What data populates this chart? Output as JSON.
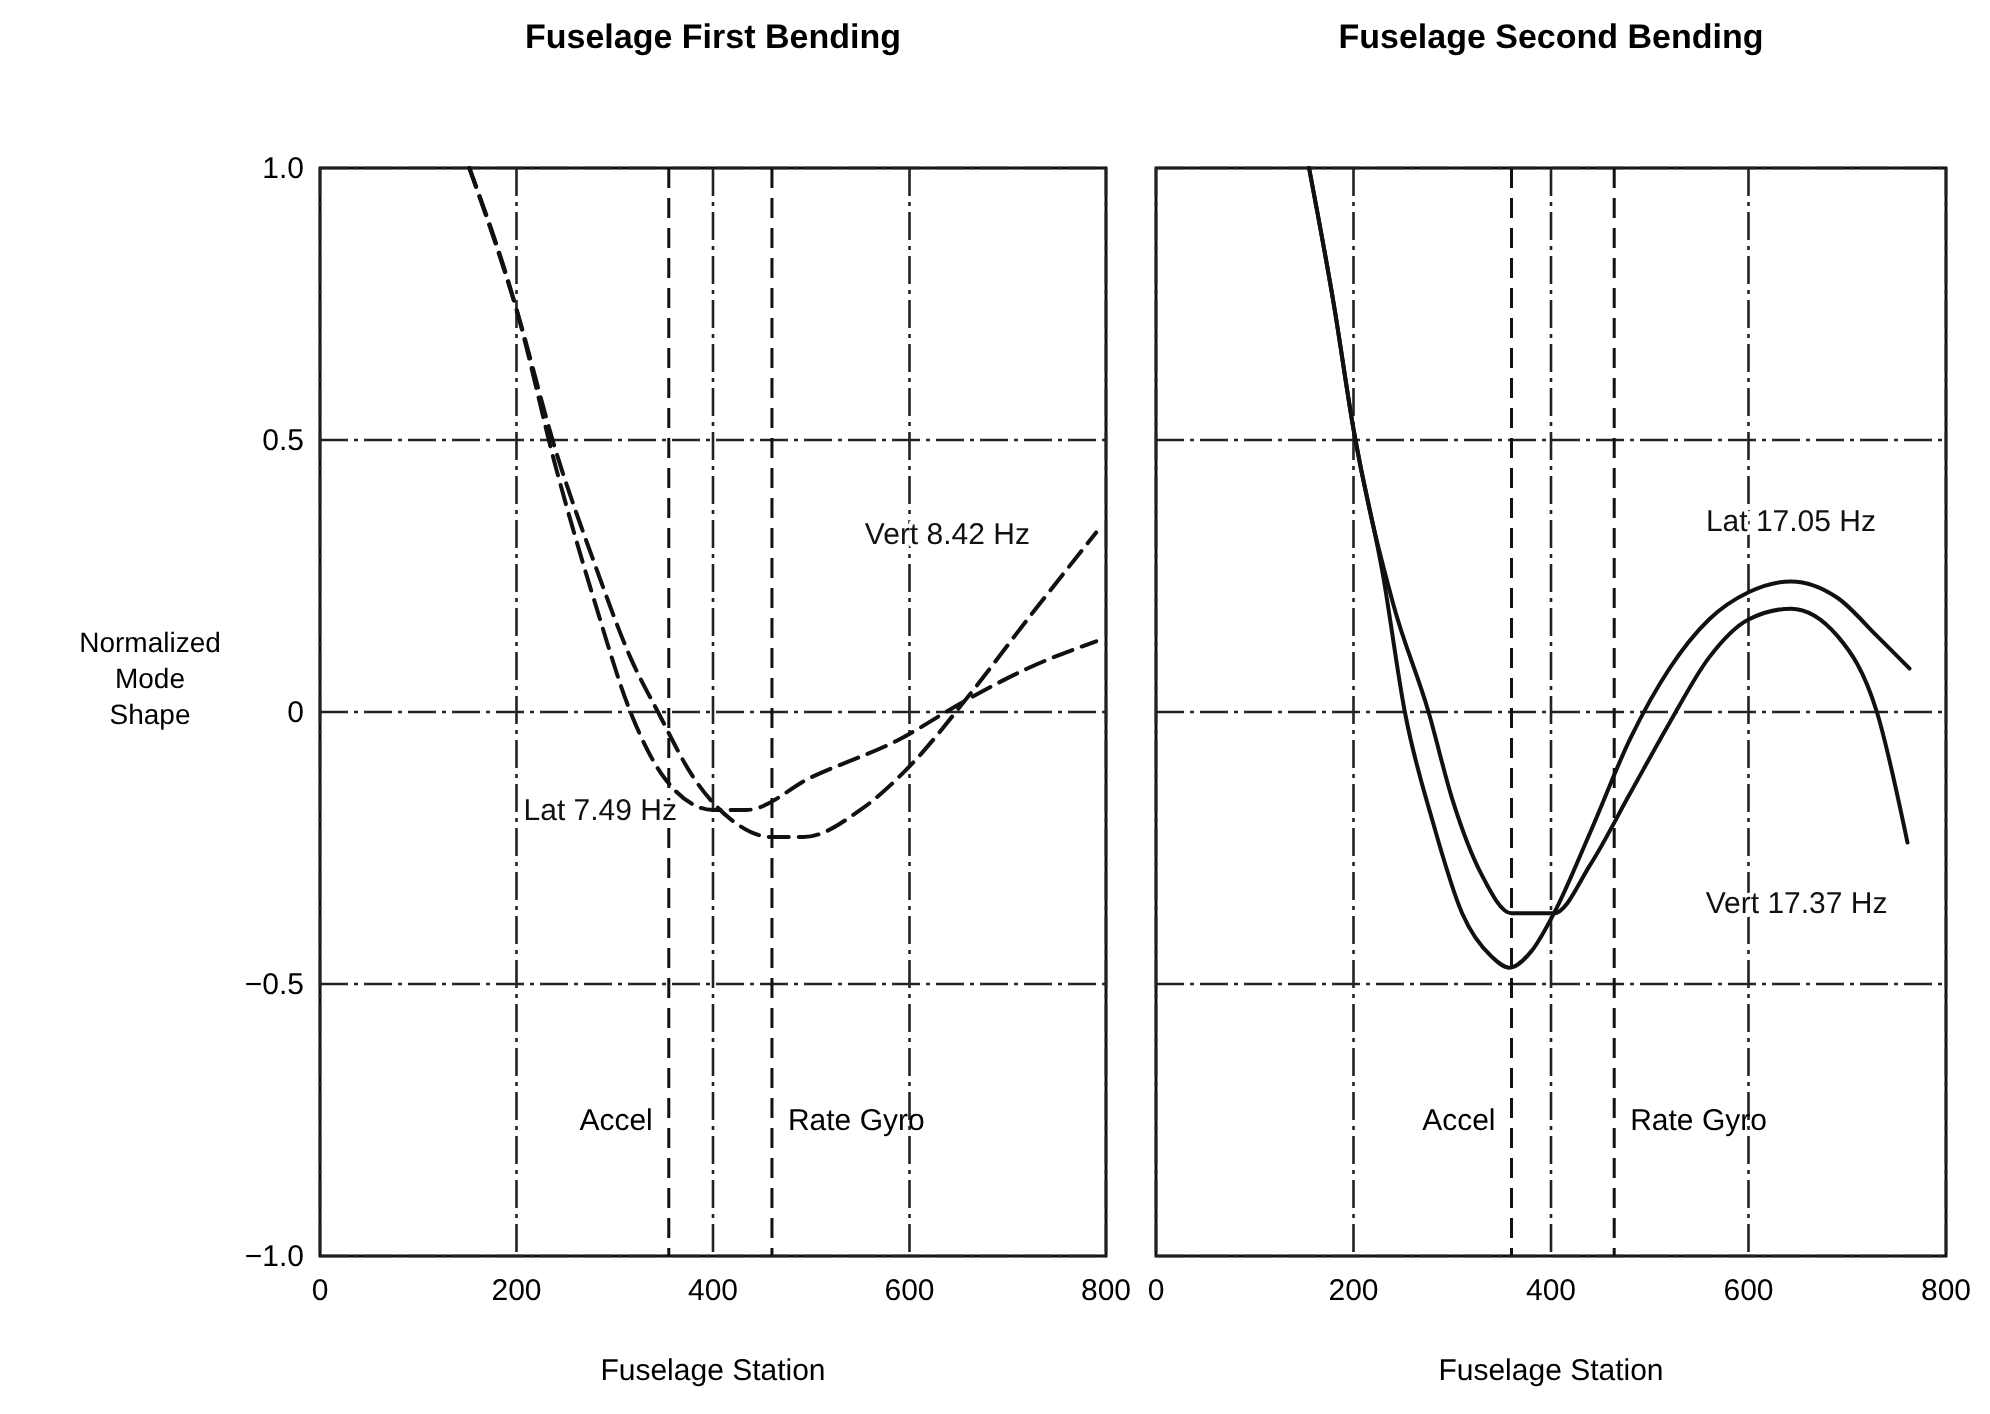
{
  "chart_data": [
    {
      "type": "line",
      "title": "Fuselage First Bending",
      "xlabel": "Fuselage Station",
      "ylabel": "Normalized Mode Shape",
      "xlim": [
        0,
        800
      ],
      "xticks": [
        0,
        200,
        400,
        600,
        800
      ],
      "ylim": [
        -1.0,
        1.0
      ],
      "yticks": [
        {
          "value": -1.0,
          "label": "−1.0"
        },
        {
          "value": -0.5,
          "label": "−0.5"
        },
        0,
        {
          "value": 0.5,
          "label": "0.5"
        },
        {
          "value": 1.0,
          "label": "1.0"
        }
      ],
      "grid": true,
      "series": [
        {
          "name": "Lat 7.49 Hz",
          "color": "#111111",
          "line_style": "dashed",
          "x": [
            152,
            200,
            240,
            280,
            316,
            350,
            400,
            434,
            500,
            590,
            656,
            720,
            790
          ],
          "values": [
            1.0,
            0.74,
            0.45,
            0.2,
            0.0,
            -0.12,
            -0.18,
            -0.18,
            -0.12,
            -0.05,
            0.02,
            0.08,
            0.13
          ]
        },
        {
          "name": "Vert 8.42 Hz",
          "color": "#111111",
          "line_style": "dashed",
          "x": [
            152,
            200,
            240,
            280,
            316,
            344,
            380,
            420,
            460,
            492,
            550,
            600,
            656,
            720,
            790
          ],
          "values": [
            1.0,
            0.74,
            0.48,
            0.27,
            0.1,
            0.0,
            -0.12,
            -0.2,
            -0.23,
            -0.23,
            -0.18,
            -0.1,
            0.02,
            0.17,
            0.33
          ]
        }
      ],
      "ref_lines": [
        {
          "axis": "x",
          "value": 355,
          "label": "Accel",
          "line_style": "dashed"
        },
        {
          "axis": "x",
          "value": 460,
          "label": "Rate Gyro",
          "line_style": "dashed"
        }
      ]
    },
    {
      "type": "line",
      "title": "Fuselage Second Bending",
      "xlabel": "Fuselage Station",
      "xlim": [
        0,
        800
      ],
      "xticks": [
        0,
        200,
        400,
        600,
        800
      ],
      "ylim": [
        -1.0,
        1.0
      ],
      "yticks": [
        -1.0,
        -0.5,
        0,
        0.5,
        1.0
      ],
      "grid": true,
      "tick_labels": "x",
      "series": [
        {
          "name": "Lat 17.05 Hz",
          "color": "#111111",
          "line_style": "solid",
          "x": [
            155,
            180,
            200,
            230,
            252,
            280,
            310,
            340,
            358,
            380,
            403,
            440,
            480,
            520,
            560,
            600,
            643,
            690,
            730,
            763
          ],
          "values": [
            1.0,
            0.75,
            0.52,
            0.25,
            0.0,
            -0.2,
            -0.37,
            -0.45,
            -0.47,
            -0.44,
            -0.37,
            -0.22,
            -0.05,
            0.08,
            0.17,
            0.22,
            0.24,
            0.21,
            0.14,
            0.08
          ]
        },
        {
          "name": "Vert 17.37 Hz",
          "color": "#111111",
          "line_style": "solid",
          "x": [
            155,
            180,
            200,
            240,
            276,
            300,
            330,
            360,
            385,
            403,
            440,
            480,
            520,
            560,
            600,
            643,
            690,
            730,
            761
          ],
          "values": [
            1.0,
            0.75,
            0.52,
            0.2,
            0.0,
            -0.16,
            -0.3,
            -0.37,
            -0.37,
            -0.37,
            -0.28,
            -0.15,
            -0.02,
            0.1,
            0.17,
            0.19,
            0.14,
            0.0,
            -0.24
          ]
        }
      ],
      "ref_lines": [
        {
          "axis": "x",
          "value": 360,
          "label": "Accel",
          "line_style": "dashed"
        },
        {
          "axis": "x",
          "value": 464,
          "label": "Rate Gyro",
          "line_style": "dashed"
        }
      ]
    }
  ]
}
